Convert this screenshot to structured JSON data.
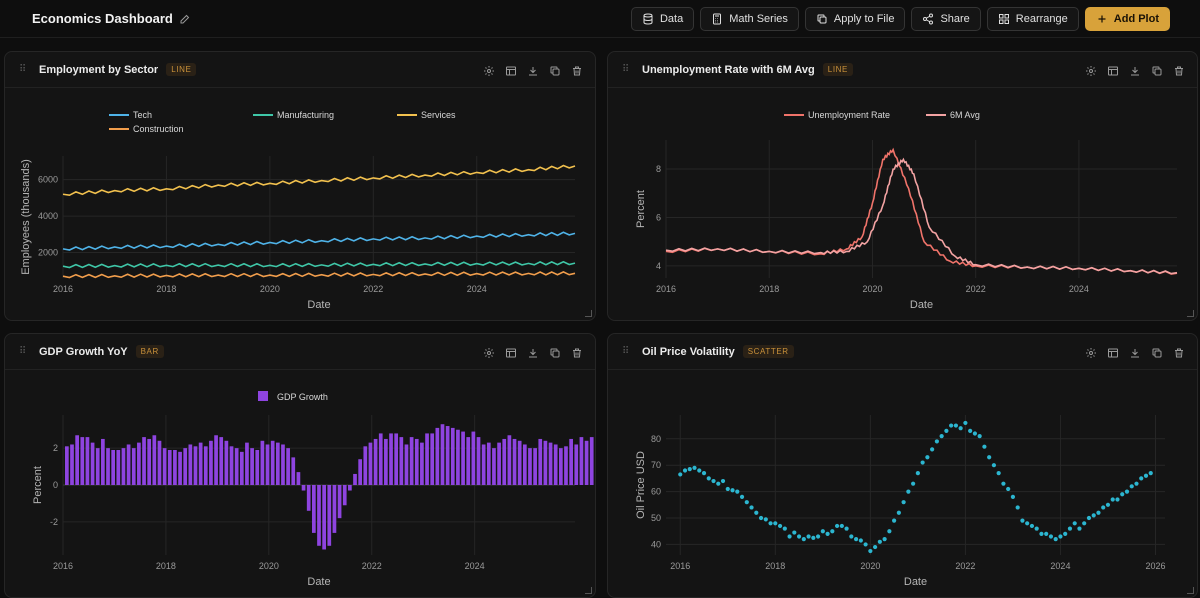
{
  "header": {
    "title": "Economics Dashboard",
    "buttons": [
      {
        "label": "Data",
        "icon": "database-icon"
      },
      {
        "label": "Math Series",
        "icon": "calculator-icon"
      },
      {
        "label": "Apply to File",
        "icon": "copy-icon"
      },
      {
        "label": "Share",
        "icon": "share-icon"
      },
      {
        "label": "Rearrange",
        "icon": "grid-icon"
      },
      {
        "label": "Add Plot",
        "icon": "plus-icon"
      }
    ]
  },
  "colors": {
    "accent": "#d8a23a",
    "tech": "#4fb3e8",
    "manufacturing": "#3fc7a8",
    "services": "#f2c14e",
    "construction": "#f29e4c",
    "unemployment": "#f0736a",
    "avg": "#f3a3a3",
    "gdp": "#8e44e0",
    "oil": "#2cb6d0"
  },
  "panels": [
    {
      "title": "Employment by Sector",
      "badge": "LINE",
      "chart_data": {
        "type": "line",
        "xlabel": "Date",
        "ylabel": "Employees (thousands)",
        "xlim": [
          2016,
          2025.9
        ],
        "ylim": [
          600,
          7300
        ],
        "xticks": [
          "2016",
          "2018",
          "2020",
          "2022",
          "2024"
        ],
        "yticks": [
          "2000",
          "4000",
          "6000"
        ],
        "legend": "top",
        "series": [
          {
            "name": "Tech",
            "x": [
              2016,
              2017,
              2018,
              2019,
              2020,
              2021,
              2022,
              2023,
              2024,
              2025,
              2025.9
            ],
            "values": [
              2200,
              2300,
              2350,
              2450,
              2550,
              2650,
              2750,
              2800,
              2900,
              2980,
              3050
            ]
          },
          {
            "name": "Manufacturing",
            "x": [
              2016,
              2017,
              2018,
              2019,
              2020,
              2021,
              2022,
              2023,
              2024,
              2025,
              2025.9
            ],
            "values": [
              1250,
              1280,
              1300,
              1310,
              1300,
              1320,
              1350,
              1370,
              1390,
              1400,
              1420
            ]
          },
          {
            "name": "Services",
            "x": [
              2016,
              2017,
              2018,
              2019,
              2020,
              2021,
              2022,
              2023,
              2024,
              2025,
              2025.9
            ],
            "values": [
              5200,
              5400,
              5500,
              5700,
              5800,
              5950,
              6100,
              6250,
              6400,
              6550,
              6750
            ]
          },
          {
            "name": "Construction",
            "x": [
              2016,
              2017,
              2018,
              2019,
              2020,
              2021,
              2022,
              2023,
              2024,
              2025,
              2025.9
            ],
            "values": [
              700,
              720,
              740,
              760,
              760,
              780,
              800,
              820,
              840,
              850,
              860
            ]
          }
        ]
      }
    },
    {
      "title": "Unemployment Rate with 6M Avg",
      "badge": "LINE",
      "chart_data": {
        "type": "line",
        "xlabel": "Date",
        "ylabel": "Percent",
        "xlim": [
          2016,
          2025.9
        ],
        "ylim": [
          3.5,
          9.2
        ],
        "xticks": [
          "2016",
          "2018",
          "2020",
          "2022",
          "2024"
        ],
        "yticks": [
          "4",
          "6",
          "8"
        ],
        "legend": "top",
        "series": [
          {
            "name": "Unemployment Rate",
            "x": [
              2016,
              2017,
              2018,
              2019,
              2019.5,
              2019.8,
              2020,
              2020.2,
              2020.4,
              2020.7,
              2021,
              2021.5,
              2022,
              2023,
              2024,
              2025,
              2025.9
            ],
            "values": [
              4.6,
              4.7,
              4.6,
              4.5,
              4.7,
              5.2,
              6.6,
              8.4,
              8.8,
              7.2,
              5.0,
              4.2,
              4.0,
              3.95,
              3.9,
              3.8,
              3.7
            ]
          },
          {
            "name": "6M Avg",
            "x": [
              2016,
              2017,
              2018,
              2019,
              2019.5,
              2019.9,
              2020.2,
              2020.4,
              2020.6,
              2020.8,
              2021.1,
              2021.6,
              2022,
              2023,
              2024,
              2025,
              2025.9
            ],
            "values": [
              4.65,
              4.7,
              4.6,
              4.55,
              4.6,
              5.0,
              6.5,
              8.0,
              8.4,
              7.8,
              5.6,
              4.4,
              4.05,
              3.95,
              3.9,
              3.8,
              3.72
            ]
          }
        ]
      }
    },
    {
      "title": "GDP Growth YoY",
      "badge": "BAR",
      "chart_data": {
        "type": "bar",
        "xlabel": "Date",
        "ylabel": "Percent",
        "xlim": [
          2016,
          2025.95
        ],
        "ylim": [
          -3.8,
          3.8
        ],
        "xticks": [
          "2016",
          "2018",
          "2020",
          "2022",
          "2024"
        ],
        "yticks": [
          "-2",
          "0",
          "2"
        ],
        "legend": "top",
        "series": [
          {
            "name": "GDP Growth",
            "x_start": 2016,
            "step": 0.1,
            "values": [
              2.1,
              2.2,
              2.7,
              2.6,
              2.6,
              2.3,
              2.0,
              2.5,
              2.0,
              1.9,
              1.9,
              2.0,
              2.2,
              2.0,
              2.3,
              2.6,
              2.5,
              2.7,
              2.4,
              2.0,
              1.9,
              1.9,
              1.8,
              2.0,
              2.2,
              2.1,
              2.3,
              2.1,
              2.4,
              2.7,
              2.6,
              2.4,
              2.1,
              2.0,
              1.8,
              2.3,
              2.0,
              1.9,
              2.4,
              2.2,
              2.4,
              2.3,
              2.2,
              2.0,
              1.5,
              0.7,
              -0.3,
              -1.4,
              -2.6,
              -3.3,
              -3.5,
              -3.3,
              -2.6,
              -1.8,
              -1.1,
              -0.3,
              0.6,
              1.4,
              2.1,
              2.3,
              2.5,
              2.8,
              2.5,
              2.8,
              2.8,
              2.6,
              2.2,
              2.6,
              2.5,
              2.3,
              2.8,
              2.8,
              3.1,
              3.3,
              3.2,
              3.1,
              3.0,
              2.9,
              2.6,
              2.9,
              2.6,
              2.2,
              2.3,
              2.0,
              2.3,
              2.5,
              2.7,
              2.5,
              2.4,
              2.2,
              2.0,
              2.0,
              2.5,
              2.4,
              2.3,
              2.2,
              2.0,
              2.1,
              2.5,
              2.2,
              2.6,
              2.4,
              2.6,
              2.3,
              1.9,
              2.0,
              2.1,
              2.1,
              2.4,
              2.2,
              2.6,
              2.3,
              2.4,
              1.9,
              2.0,
              2.2,
              2.4,
              2.1,
              1.9,
              1.9,
              2.2
            ]
          }
        ]
      }
    },
    {
      "title": "Oil Price Volatility",
      "badge": "SCATTER",
      "chart_data": {
        "type": "scatter",
        "xlabel": "Date",
        "ylabel": "Oil Price USD",
        "xlim": [
          2015.7,
          2026.2
        ],
        "ylim": [
          36,
          89
        ],
        "xticks": [
          "2016",
          "2018",
          "2020",
          "2022",
          "2024",
          "2026"
        ],
        "yticks": [
          "40",
          "50",
          "60",
          "70",
          "80"
        ],
        "series": [
          {
            "name": "Oil Price",
            "x": [
              2016.0,
              2016.1,
              2016.2,
              2016.3,
              2016.4,
              2016.5,
              2016.6,
              2016.7,
              2016.8,
              2016.9,
              2017.0,
              2017.1,
              2017.2,
              2017.3,
              2017.4,
              2017.5,
              2017.6,
              2017.7,
              2017.8,
              2017.9,
              2018.0,
              2018.1,
              2018.2,
              2018.3,
              2018.4,
              2018.5,
              2018.6,
              2018.7,
              2018.8,
              2018.9,
              2019.0,
              2019.1,
              2019.2,
              2019.3,
              2019.4,
              2019.5,
              2019.6,
              2019.7,
              2019.8,
              2019.9,
              2020.0,
              2020.1,
              2020.2,
              2020.3,
              2020.4,
              2020.5,
              2020.6,
              2020.7,
              2020.8,
              2020.9,
              2021.0,
              2021.1,
              2021.2,
              2021.3,
              2021.4,
              2021.5,
              2021.6,
              2021.7,
              2021.8,
              2021.9,
              2022.0,
              2022.1,
              2022.2,
              2022.3,
              2022.4,
              2022.5,
              2022.6,
              2022.7,
              2022.8,
              2022.9,
              2023.0,
              2023.1,
              2023.2,
              2023.3,
              2023.4,
              2023.5,
              2023.6,
              2023.7,
              2023.8,
              2023.9,
              2024.0,
              2024.1,
              2024.2,
              2024.3,
              2024.4,
              2024.5,
              2024.6,
              2024.7,
              2024.8,
              2024.9,
              2025.0,
              2025.1,
              2025.2,
              2025.3,
              2025.4,
              2025.5,
              2025.6,
              2025.7,
              2025.8,
              2025.9
            ],
            "values": [
              66.5,
              68,
              68.5,
              69,
              68,
              67,
              65,
              64,
              63,
              64,
              61,
              60.5,
              60,
              58,
              56,
              54,
              52,
              50,
              49.5,
              48,
              48,
              47,
              46,
              43,
              44.5,
              43,
              42,
              43,
              42.5,
              43,
              45,
              44,
              45,
              47,
              47,
              46,
              43,
              42,
              41.5,
              40,
              37.5,
              39,
              41,
              42,
              45,
              49,
              52,
              56,
              60,
              63,
              67,
              71,
              73,
              76,
              79,
              81,
              83,
              85,
              85,
              84,
              86,
              83,
              82,
              81,
              77,
              73,
              70,
              67,
              63,
              61,
              58,
              54,
              49,
              48,
              47,
              46,
              44,
              44,
              43,
              42,
              43,
              44,
              46,
              48,
              46,
              48,
              50,
              51,
              52,
              54,
              55,
              57,
              57,
              59,
              60,
              62,
              63,
              65,
              66,
              67
            ]
          }
        ]
      }
    }
  ]
}
